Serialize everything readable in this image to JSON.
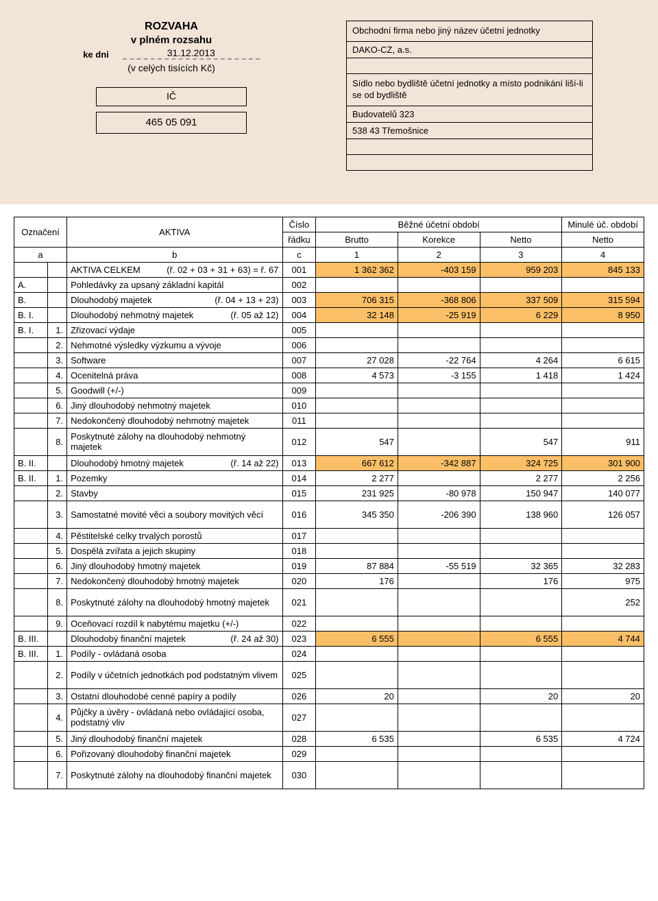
{
  "header": {
    "title1": "ROZVAHA",
    "title2": "v plném rozsahu",
    "kedni_label": "ke dni",
    "date": "31.12.2013",
    "units": "(v celých tisících Kč)",
    "ic_label": "IČ",
    "ic_value": "465 05 091",
    "right_caption": "Obchodní firma nebo jiný název účetní jednotky",
    "company": "DAKO-CZ, a.s.",
    "addr_caption": "Sídlo nebo bydliště účetní jednotky a  místo podnikání liší-li se od bydliště",
    "addr1": "Budovatelů 323",
    "addr2": "538 43 Třemošnice"
  },
  "thead": {
    "oznaceni": "Označení",
    "aktiva": "AKTIVA",
    "cislo": "Číslo",
    "radku": "řádku",
    "bezne": "Běžné účetní období",
    "minule": "Minulé úč. období",
    "brutto": "Brutto",
    "korekce": "Korekce",
    "netto": "Netto",
    "a": "a",
    "b": "b",
    "c": "c",
    "n1": "1",
    "n2": "2",
    "n3": "3",
    "n4": "4"
  },
  "rows": [
    {
      "a": "",
      "a2": "",
      "b": "AKTIVA CELKEM",
      "note": "(ř. 02 + 03 + 31 + 63) = ř. 67",
      "c": "001",
      "v": [
        "1 362 362",
        "-403 159",
        "959 203",
        "845 133"
      ],
      "hl": true
    },
    {
      "a": "A.",
      "a2": "",
      "b": "Pohledávky za upsaný základní kapitál",
      "note": "",
      "c": "002",
      "v": [
        "",
        "",
        "",
        ""
      ]
    },
    {
      "a": "B.",
      "a2": "",
      "b": "Dlouhodobý majetek",
      "note": "(ř. 04 + 13 + 23)",
      "c": "003",
      "v": [
        "706 315",
        "-368 806",
        "337 509",
        "315 594"
      ],
      "hl": true
    },
    {
      "a": "B. I.",
      "a2": "",
      "b": "Dlouhodobý nehmotný majetek",
      "note": "(ř. 05 až 12)",
      "c": "004",
      "v": [
        "32 148",
        "-25 919",
        "6 229",
        "8 950"
      ],
      "hl": true
    },
    {
      "a": "B. I.",
      "a2": "1.",
      "b": "Zřizovací výdaje",
      "note": "",
      "c": "005",
      "v": [
        "",
        "",
        "",
        ""
      ]
    },
    {
      "a": "",
      "a2": "2.",
      "b": "Nehmotné výsledky výzkumu a vývoje",
      "note": "",
      "c": "006",
      "v": [
        "",
        "",
        "",
        ""
      ]
    },
    {
      "a": "",
      "a2": "3.",
      "b": "Software",
      "note": "",
      "c": "007",
      "v": [
        "27 028",
        "-22 764",
        "4 264",
        "6 615"
      ]
    },
    {
      "a": "",
      "a2": "4.",
      "b": "Ocenitelná práva",
      "note": "",
      "c": "008",
      "v": [
        "4 573",
        "-3 155",
        "1 418",
        "1 424"
      ]
    },
    {
      "a": "",
      "a2": "5.",
      "b": "Goodwill (+/-)",
      "note": "",
      "c": "009",
      "v": [
        "",
        "",
        "",
        ""
      ]
    },
    {
      "a": "",
      "a2": "6.",
      "b": "Jiný dlouhodobý nehmotný majetek",
      "note": "",
      "c": "010",
      "v": [
        "",
        "",
        "",
        ""
      ]
    },
    {
      "a": "",
      "a2": "7.",
      "b": "Nedokončený dlouhodobý nehmotný majetek",
      "note": "",
      "c": "011",
      "v": [
        "",
        "",
        "",
        ""
      ]
    },
    {
      "a": "",
      "a2": "8.",
      "b": "Poskytnuté zálohy na dlouhodobý nehmotný majetek",
      "note": "",
      "c": "012",
      "v": [
        "547",
        "",
        "547",
        "911"
      ],
      "tall": true
    },
    {
      "a": "B. II.",
      "a2": "",
      "b": "Dlouhodobý hmotný  majetek",
      "note": "(ř. 14 až 22)",
      "c": "013",
      "v": [
        "667 612",
        "-342 887",
        "324 725",
        "301 900"
      ],
      "hl": true
    },
    {
      "a": "B. II.",
      "a2": "1.",
      "b": "Pozemky",
      "note": "",
      "c": "014",
      "v": [
        "2 277",
        "",
        "2 277",
        "2 256"
      ]
    },
    {
      "a": "",
      "a2": "2.",
      "b": "Stavby",
      "note": "",
      "c": "015",
      "v": [
        "231 925",
        "-80 978",
        "150 947",
        "140 077"
      ]
    },
    {
      "a": "",
      "a2": "3.",
      "b": "Samostatné movité věci a soubory movitých věcí",
      "note": "",
      "c": "016",
      "v": [
        "345 350",
        "-206 390",
        "138 960",
        "126 057"
      ],
      "tall": true
    },
    {
      "a": "",
      "a2": "4.",
      "b": "Pěstitelské celky trvalých porostů",
      "note": "",
      "c": "017",
      "v": [
        "",
        "",
        "",
        ""
      ]
    },
    {
      "a": "",
      "a2": "5.",
      "b": "Dospělá zvířata a jejich skupiny",
      "note": "",
      "c": "018",
      "v": [
        "",
        "",
        "",
        ""
      ]
    },
    {
      "a": "",
      "a2": "6.",
      "b": "Jiný dlouhodobý hmotný majetek",
      "note": "",
      "c": "019",
      "v": [
        "87 884",
        "-55 519",
        "32 365",
        "32 283"
      ]
    },
    {
      "a": "",
      "a2": "7.",
      "b": "Nedokončený dlouhodobý hmotný majetek",
      "note": "",
      "c": "020",
      "v": [
        "176",
        "",
        "176",
        "975"
      ]
    },
    {
      "a": "",
      "a2": "8.",
      "b": "Poskytnuté zálohy na dlouhodobý hmotný majetek",
      "note": "",
      "c": "021",
      "v": [
        "",
        "",
        "",
        "252"
      ],
      "tall": true
    },
    {
      "a": "",
      "a2": "9.",
      "b": "Oceňovací rozdíl k nabytému majetku (+/-)",
      "note": "",
      "c": "022",
      "v": [
        "",
        "",
        "",
        ""
      ]
    },
    {
      "a": "B. III.",
      "a2": "",
      "b": "Dlouhodobý finanční majetek",
      "note": "(ř. 24 až 30)",
      "c": "023",
      "v": [
        "6 555",
        "",
        "6 555",
        "4 744"
      ],
      "hl": true
    },
    {
      "a": "B. III.",
      "a2": "1.",
      "b": "Podíly - ovládaná osoba",
      "note": "",
      "c": "024",
      "v": [
        "",
        "",
        "",
        ""
      ]
    },
    {
      "a": "",
      "a2": "2.",
      "b": "Podíly v účetních jednotkách pod podstatným vlivem",
      "note": "",
      "c": "025",
      "v": [
        "",
        "",
        "",
        ""
      ],
      "tall": true
    },
    {
      "a": "",
      "a2": "3.",
      "b": "Ostatní dlouhodobé cenné papíry a podíly",
      "note": "",
      "c": "026",
      "v": [
        "20",
        "",
        "20",
        "20"
      ]
    },
    {
      "a": "",
      "a2": "4.",
      "b": "Půjčky a úvěry - ovládaná nebo ovládající osoba, podstatný vliv",
      "note": "",
      "c": "027",
      "v": [
        "",
        "",
        "",
        ""
      ],
      "tall": true
    },
    {
      "a": "",
      "a2": "5.",
      "b": "Jiný dlouhodobý finanční majetek",
      "note": "",
      "c": "028",
      "v": [
        "6 535",
        "",
        "6 535",
        "4 724"
      ]
    },
    {
      "a": "",
      "a2": "6.",
      "b": "Pořizovaný dlouhodobý finanční majetek",
      "note": "",
      "c": "029",
      "v": [
        "",
        "",
        "",
        ""
      ]
    },
    {
      "a": "",
      "a2": "7.",
      "b": "Poskytnuté zálohy na  dlouhodobý finanční majetek",
      "note": "",
      "c": "030",
      "v": [
        "",
        "",
        "",
        ""
      ],
      "tall": true
    }
  ],
  "colors": {
    "highlight": "#fbbf68",
    "header_bg": "#f3e4d8"
  }
}
